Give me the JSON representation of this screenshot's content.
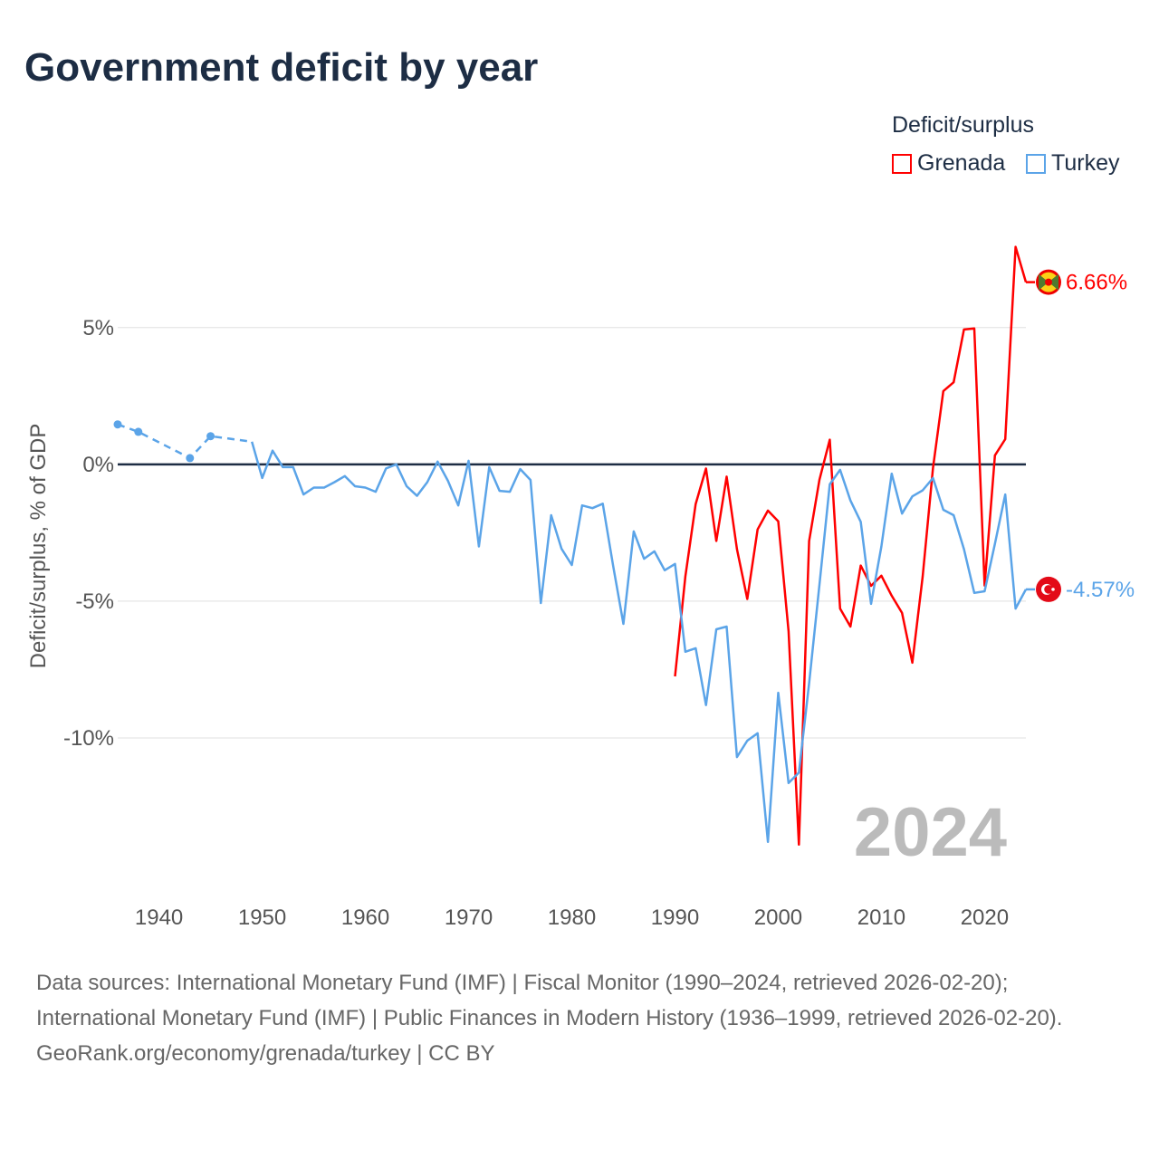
{
  "title": "Government deficit by year",
  "legend_title": "Deficit/surplus",
  "footer": {
    "sources": "Data sources: International Monetary Fund (IMF) | Fiscal Monitor (1990–2024, retrieved 2026-02-20); International Monetary Fund (IMF) | Public Finances in Modern History (1936–1999, retrieved 2026-02-20).",
    "credit": "GeoRank.org/economy/grenada/turkey | CC BY"
  },
  "chart_data": {
    "type": "line",
    "title": "Government deficit by year",
    "xlabel": "",
    "ylabel": "Deficit/surplus, % of GDP",
    "xlim": [
      1936,
      2024
    ],
    "ylim": [
      -14.8,
      8.6
    ],
    "x_ticks": [
      1940,
      1950,
      1960,
      1970,
      1980,
      1990,
      2000,
      2010,
      2020
    ],
    "y_ticks": [
      {
        "value": 5,
        "label": "5%"
      },
      {
        "value": 0,
        "label": "0%"
      },
      {
        "value": -5,
        "label": "-5%"
      },
      {
        "value": -10,
        "label": "-10%"
      }
    ],
    "grid": true,
    "legend_position": "top-right",
    "year_watermark": "2024",
    "series": [
      {
        "name": "Grenada",
        "color": "#ff0000",
        "end_label": "6.66%",
        "flag": "grenada-flag",
        "x": [
          1990,
          1991,
          1992,
          1993,
          1994,
          1995,
          1996,
          1997,
          1998,
          1999,
          2000,
          2001,
          2002,
          2003,
          2004,
          2005,
          2006,
          2007,
          2008,
          2009,
          2010,
          2011,
          2012,
          2013,
          2014,
          2015,
          2016,
          2017,
          2018,
          2019,
          2020,
          2021,
          2022,
          2023,
          2024
        ],
        "y": [
          -7.75,
          -4.1,
          -1.45,
          -0.15,
          -2.8,
          -0.45,
          -3.1,
          -4.92,
          -2.38,
          -1.69,
          -2.08,
          -6.1,
          -13.9,
          -2.8,
          -0.56,
          0.9,
          -5.27,
          -5.93,
          -3.7,
          -4.44,
          -4.07,
          -4.8,
          -5.43,
          -7.25,
          -4.1,
          -0.13,
          2.68,
          3.0,
          4.93,
          4.97,
          -4.43,
          0.33,
          0.92,
          7.95,
          6.66
        ]
      },
      {
        "name": "Turkey",
        "color": "#5ba4e8",
        "end_label": "-4.57%",
        "flag": "turkey-flag",
        "sparse_x": [
          1936,
          1938,
          1943,
          1945,
          1949
        ],
        "sparse_y": [
          1.46,
          1.19,
          0.23,
          1.03,
          0.83
        ],
        "x": [
          1949,
          1950,
          1951,
          1952,
          1953,
          1954,
          1955,
          1956,
          1957,
          1958,
          1959,
          1960,
          1961,
          1962,
          1963,
          1964,
          1965,
          1966,
          1967,
          1968,
          1969,
          1970,
          1971,
          1972,
          1973,
          1974,
          1975,
          1976,
          1977,
          1978,
          1979,
          1980,
          1981,
          1982,
          1983,
          1984,
          1985,
          1986,
          1987,
          1988,
          1989,
          1990,
          1991,
          1992,
          1993,
          1994,
          1995,
          1996,
          1997,
          1998,
          1999,
          2000,
          2001,
          2002,
          2003,
          2004,
          2005,
          2006,
          2007,
          2008,
          2009,
          2010,
          2011,
          2012,
          2013,
          2014,
          2015,
          2016,
          2017,
          2018,
          2019,
          2020,
          2021,
          2022,
          2023,
          2024
        ],
        "y": [
          0.83,
          -0.5,
          0.5,
          -0.1,
          -0.1,
          -1.1,
          -0.85,
          -0.85,
          -0.65,
          -0.43,
          -0.8,
          -0.85,
          -1.0,
          -0.15,
          0,
          -0.8,
          -1.15,
          -0.65,
          0.1,
          -0.6,
          -1.5,
          0.13,
          -3.0,
          -0.1,
          -0.97,
          -1.0,
          -0.17,
          -0.57,
          -5.07,
          -1.86,
          -3.08,
          -3.68,
          -1.5,
          -1.6,
          -1.44,
          -3.7,
          -5.83,
          -2.45,
          -3.45,
          -3.18,
          -3.87,
          -3.64,
          -6.85,
          -6.72,
          -8.8,
          -6.03,
          -5.93,
          -10.7,
          -10.1,
          -9.83,
          -13.8,
          -8.35,
          -11.65,
          -11.27,
          -8.0,
          -4.4,
          -0.73,
          -0.2,
          -1.32,
          -2.1,
          -5.1,
          -3.0,
          -0.34,
          -1.8,
          -1.17,
          -0.95,
          -0.5,
          -1.66,
          -1.86,
          -3.1,
          -4.7,
          -4.64,
          -2.9,
          -1.1,
          -5.27,
          -4.57
        ]
      }
    ]
  }
}
